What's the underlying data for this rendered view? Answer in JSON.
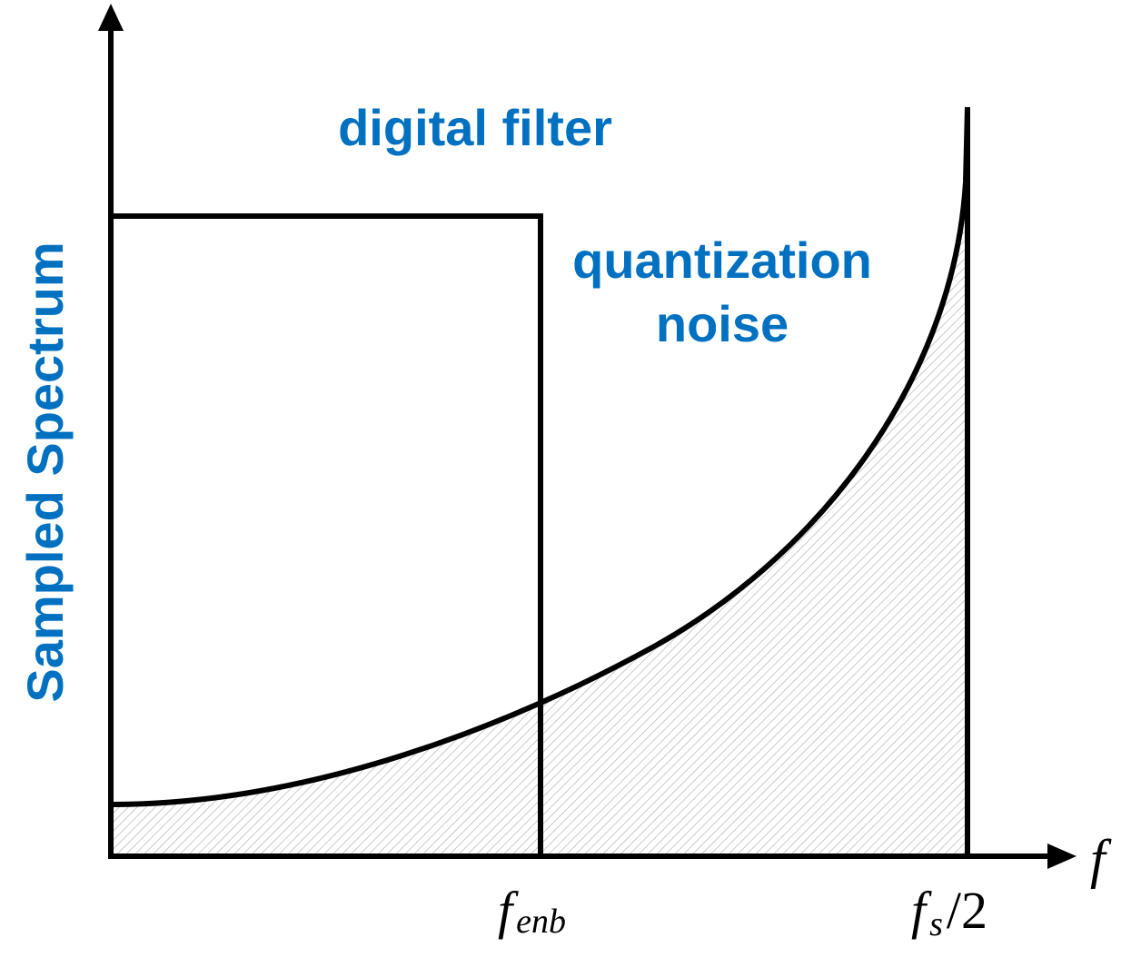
{
  "labels": {
    "y_axis": "Sampled Spectrum",
    "filter": "digital filter",
    "noise_line1": "quantization",
    "noise_line2": "noise",
    "x_axis": "f",
    "f_enb_base": "f",
    "f_enb_sub": "enb",
    "fs_base": "f",
    "fs_sub": "s",
    "fs_suffix": "/2"
  },
  "colors": {
    "label": "#0070C0",
    "stroke": "#000000",
    "hatch": "#b3b3b3"
  }
}
